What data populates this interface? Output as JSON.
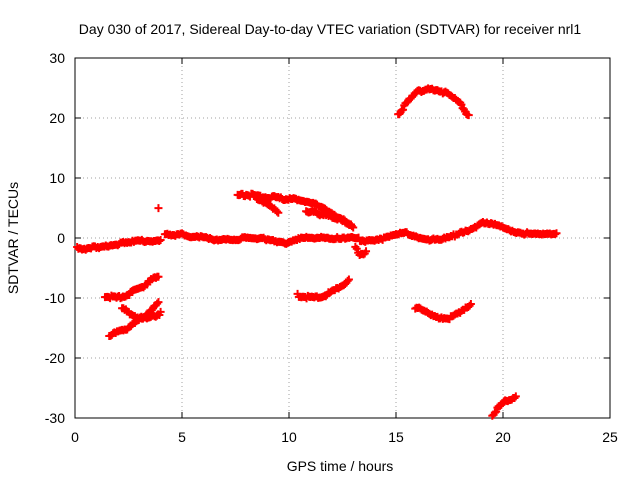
{
  "chart_data": {
    "type": "scatter",
    "title": "Day 030 of 2017, Sidereal Day-to-day VTEC variation (SDTVAR) for receiver nrl1",
    "xlabel": "GPS time / hours",
    "ylabel": "SDTVAR / TECUs",
    "xlim": [
      0,
      25
    ],
    "ylim": [
      -30,
      30
    ],
    "xticks": [
      "0",
      "5",
      "10",
      "15",
      "20",
      "25"
    ],
    "yticks": [
      "-30",
      "-20",
      "-10",
      "0",
      "10",
      "20",
      "30"
    ],
    "grid": true,
    "marker": "plus",
    "series_color": "#ff0000",
    "tracks": [
      {
        "name": "main-band-a",
        "points": [
          [
            0.1,
            -1.5
          ],
          [
            0.5,
            -2.0
          ],
          [
            1.0,
            -1.5
          ],
          [
            1.5,
            -1.2
          ],
          [
            2.0,
            -1.0
          ],
          [
            2.5,
            -0.8
          ],
          [
            3.0,
            -0.6
          ],
          [
            3.5,
            -0.4
          ],
          [
            4.0,
            -0.3
          ]
        ]
      },
      {
        "name": "main-band-b",
        "points": [
          [
            4.2,
            0.5
          ],
          [
            4.5,
            0.5
          ],
          [
            5.0,
            0.8
          ],
          [
            5.5,
            0.2
          ],
          [
            6.0,
            0.0
          ],
          [
            6.5,
            -0.4
          ],
          [
            7.0,
            0.0
          ],
          [
            7.5,
            -0.3
          ],
          [
            8.0,
            0.0
          ],
          [
            8.5,
            -0.3
          ],
          [
            9.0,
            -0.1
          ],
          [
            9.5,
            -0.5
          ],
          [
            10.0,
            -0.8
          ],
          [
            10.5,
            -0.2
          ],
          [
            11.0,
            0.0
          ],
          [
            11.5,
            0.2
          ],
          [
            12.0,
            0.0
          ],
          [
            12.5,
            -0.2
          ],
          [
            13.0,
            0.0
          ],
          [
            13.5,
            -0.4
          ],
          [
            14.0,
            -0.2
          ],
          [
            14.5,
            0.0
          ],
          [
            15.0,
            0.5
          ],
          [
            15.5,
            0.9
          ],
          [
            16.0,
            0.2
          ],
          [
            16.5,
            -0.2
          ],
          [
            17.0,
            -0.4
          ],
          [
            17.5,
            0.0
          ],
          [
            18.0,
            1.0
          ],
          [
            18.5,
            1.5
          ],
          [
            19.0,
            2.5
          ],
          [
            19.5,
            2.2
          ],
          [
            20.0,
            1.8
          ],
          [
            20.5,
            1.2
          ],
          [
            21.0,
            0.8
          ],
          [
            21.5,
            0.5
          ],
          [
            22.0,
            0.6
          ],
          [
            22.5,
            0.8
          ]
        ]
      },
      {
        "name": "outlier-a",
        "points": [
          [
            3.9,
            5.0
          ]
        ]
      },
      {
        "name": "outlier-b",
        "points": [
          [
            13.1,
            -1.5
          ],
          [
            13.3,
            -3.0
          ],
          [
            13.6,
            -2.2
          ]
        ]
      },
      {
        "name": "arc-low-1",
        "points": [
          [
            1.4,
            -9.7
          ],
          [
            2.0,
            -10.0
          ],
          [
            2.6,
            -9.2
          ],
          [
            3.2,
            -8.0
          ],
          [
            3.9,
            -6.2
          ]
        ]
      },
      {
        "name": "arc-low-2",
        "points": [
          [
            1.6,
            -16.2
          ],
          [
            2.2,
            -15.5
          ],
          [
            2.8,
            -14.2
          ],
          [
            3.4,
            -12.5
          ],
          [
            3.9,
            -10.5
          ]
        ]
      },
      {
        "name": "arc-low-3",
        "points": [
          [
            2.2,
            -11.8
          ],
          [
            2.8,
            -13.0
          ],
          [
            3.3,
            -13.5
          ],
          [
            3.6,
            -13.2
          ],
          [
            4.0,
            -12.5
          ]
        ]
      },
      {
        "name": "arc-mid-1",
        "points": [
          [
            7.6,
            7.0
          ],
          [
            8.0,
            7.2
          ],
          [
            8.6,
            7.0
          ],
          [
            9.2,
            6.8
          ],
          [
            9.8,
            6.5
          ],
          [
            10.5,
            6.4
          ],
          [
            11.0,
            6.0
          ],
          [
            11.5,
            5.0
          ],
          [
            12.0,
            4.0
          ],
          [
            12.5,
            3.0
          ],
          [
            13.0,
            2.0
          ]
        ]
      },
      {
        "name": "arc-mid-2",
        "points": [
          [
            8.5,
            6.5
          ],
          [
            9.0,
            5.5
          ],
          [
            9.5,
            4.2
          ]
        ]
      },
      {
        "name": "arc-mid-3",
        "points": [
          [
            10.8,
            4.5
          ],
          [
            11.5,
            4.0
          ],
          [
            12.2,
            3.3
          ],
          [
            12.9,
            2.4
          ]
        ]
      },
      {
        "name": "arc-mid-low",
        "points": [
          [
            10.4,
            -9.5
          ],
          [
            11.0,
            -10.0
          ],
          [
            11.6,
            -9.7
          ],
          [
            12.2,
            -8.6
          ],
          [
            12.8,
            -7.0
          ]
        ]
      },
      {
        "name": "arc-high",
        "points": [
          [
            15.1,
            20.5
          ],
          [
            15.5,
            22.5
          ],
          [
            16.0,
            24.3
          ],
          [
            16.5,
            25.0
          ],
          [
            17.0,
            24.7
          ],
          [
            17.5,
            23.8
          ],
          [
            18.0,
            22.5
          ],
          [
            18.4,
            20.3
          ]
        ]
      },
      {
        "name": "arc-low-right",
        "points": [
          [
            15.9,
            -11.5
          ],
          [
            16.5,
            -12.5
          ],
          [
            17.0,
            -13.2
          ],
          [
            17.5,
            -13.3
          ],
          [
            18.0,
            -12.5
          ],
          [
            18.5,
            -11.2
          ]
        ]
      },
      {
        "name": "arc-bottom",
        "points": [
          [
            19.5,
            -29.5
          ],
          [
            19.8,
            -28.2
          ],
          [
            20.1,
            -27.3
          ],
          [
            20.6,
            -26.3
          ]
        ]
      }
    ]
  }
}
